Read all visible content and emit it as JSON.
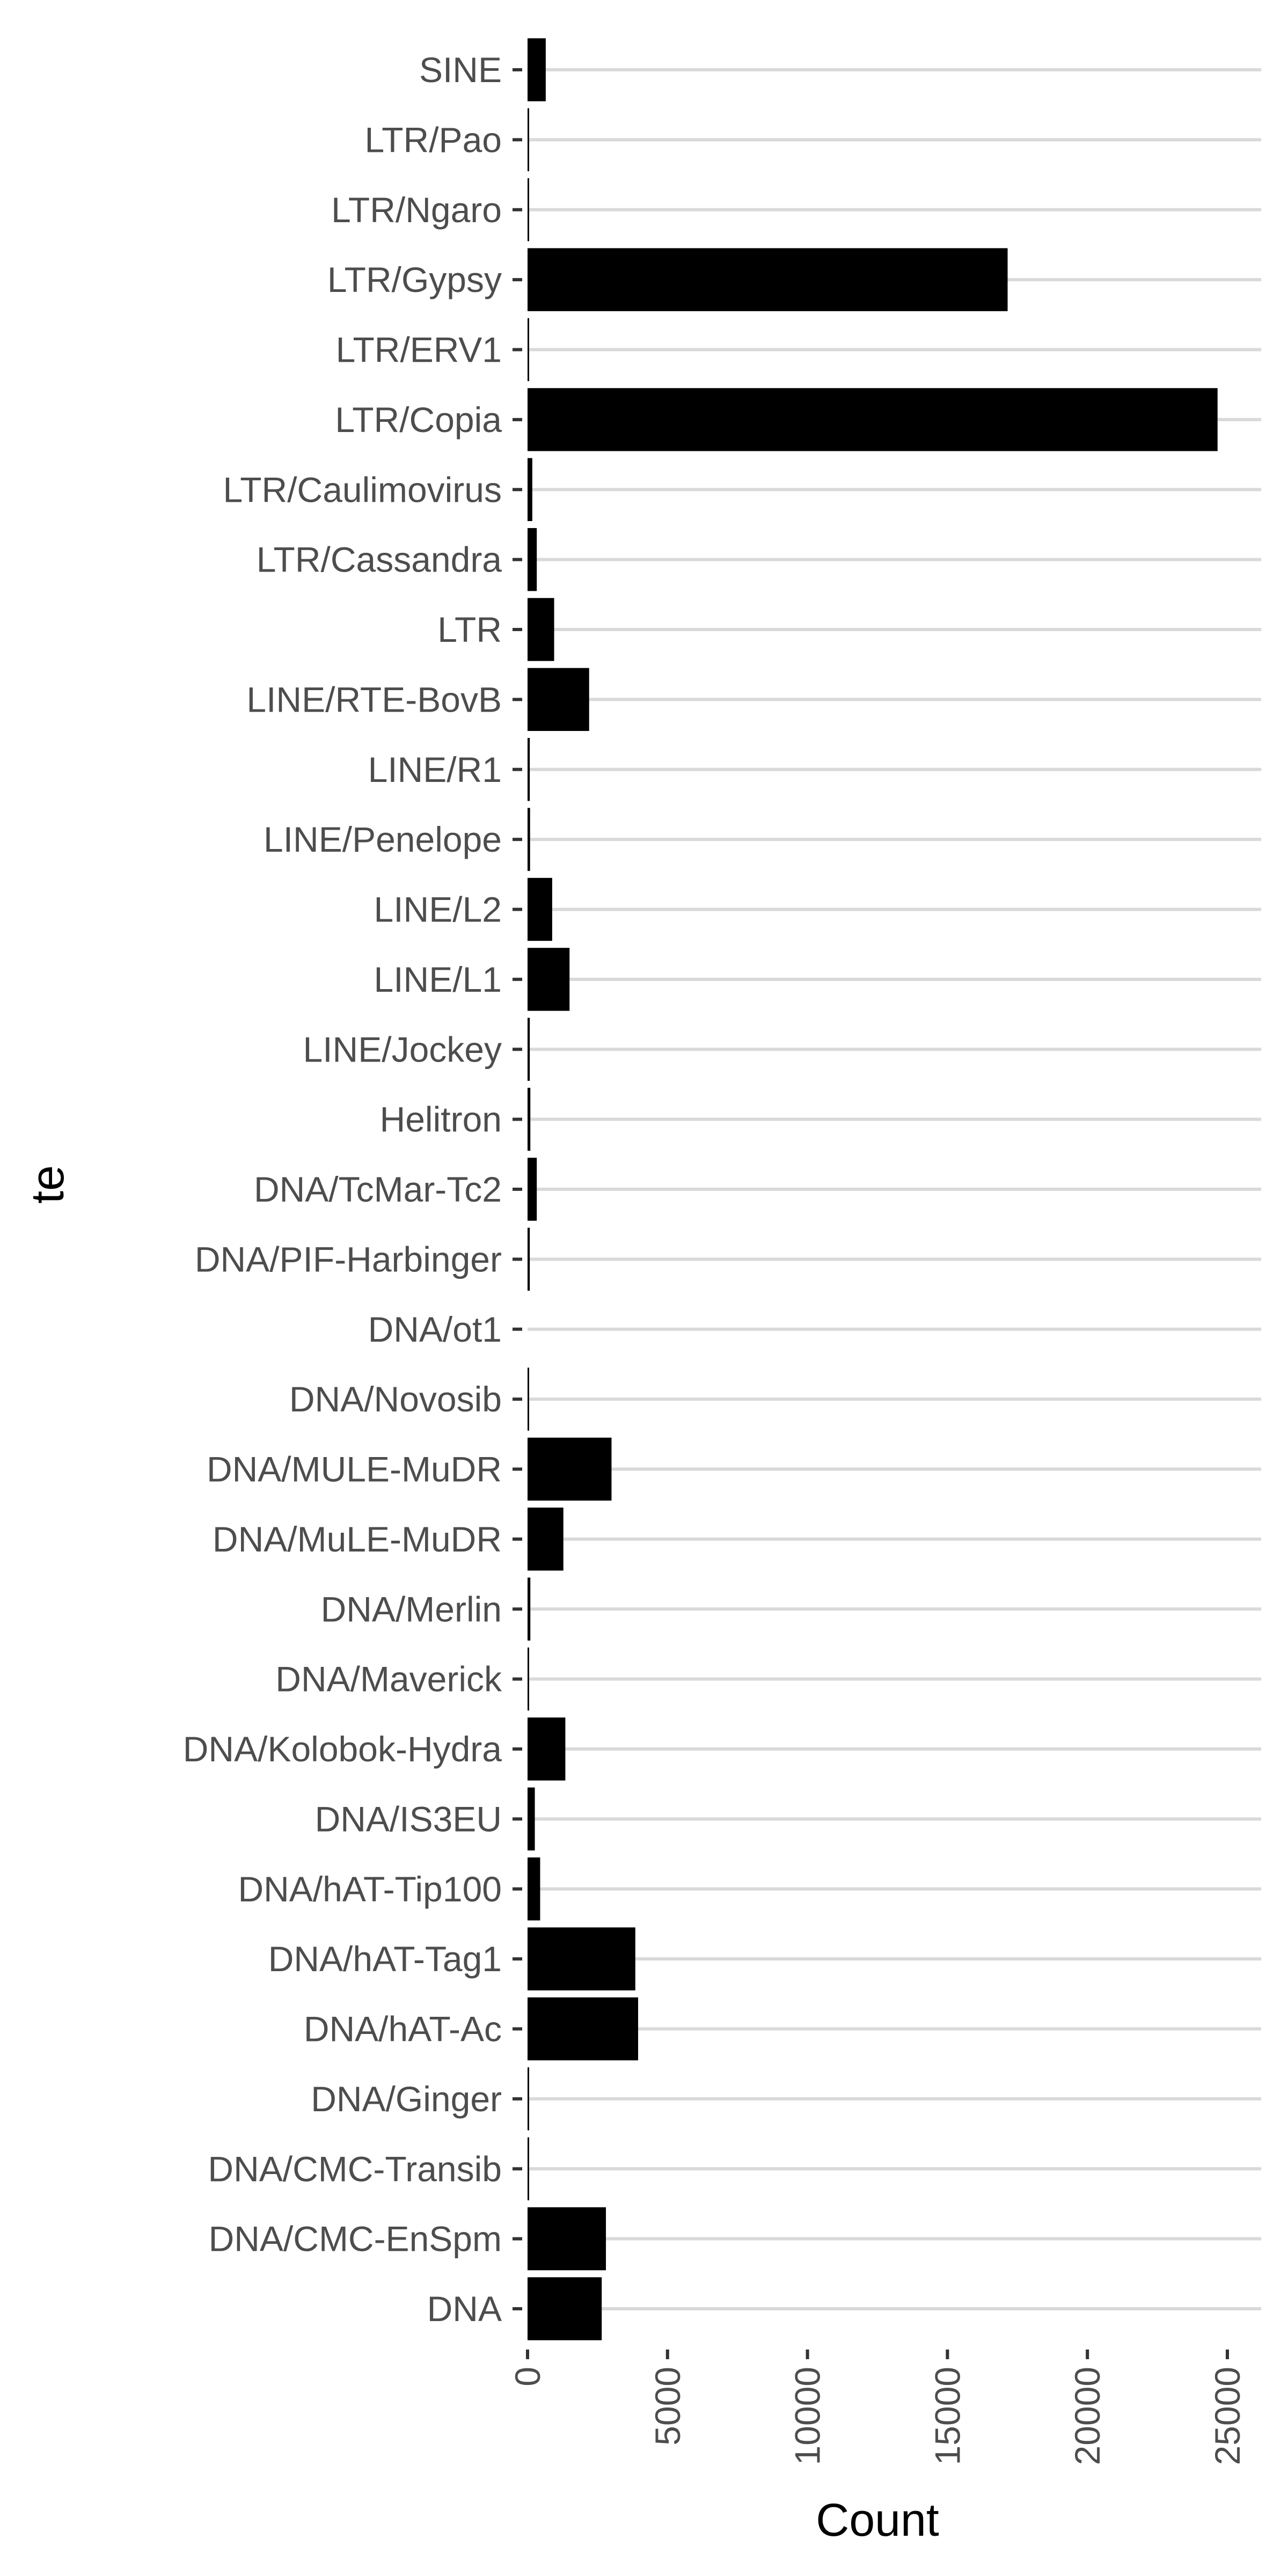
{
  "chart_data": {
    "type": "bar",
    "orientation": "horizontal",
    "title": "",
    "xlabel": "Count",
    "ylabel": "te",
    "xlim": [
      0,
      25000
    ],
    "x_ticks": [
      0,
      5000,
      10000,
      15000,
      20000,
      25000
    ],
    "x_tick_labels": [
      "0",
      "5000",
      "10000",
      "15000",
      "20000",
      "25000"
    ],
    "grid": true,
    "legend": "none",
    "bar_color": "#000000",
    "categories": [
      "SINE",
      "LTR/Pao",
      "LTR/Ngaro",
      "LTR/Gypsy",
      "LTR/ERV1",
      "LTR/Copia",
      "LTR/Caulimovirus",
      "LTR/Cassandra",
      "LTR",
      "LINE/RTE-BovB",
      "LINE/R1",
      "LINE/Penelope",
      "LINE/L2",
      "LINE/L1",
      "LINE/Jockey",
      "Helitron",
      "DNA/TcMar-Tc2",
      "DNA/PIF-Harbinger",
      "DNA/ot1",
      "DNA/Novosib",
      "DNA/MULE-MuDR",
      "DNA/MuLE-MuDR",
      "DNA/Merlin",
      "DNA/Maverick",
      "DNA/Kolobok-Hydra",
      "DNA/IS3EU",
      "DNA/hAT-Tip100",
      "DNA/hAT-Tag1",
      "DNA/hAT-Ac",
      "DNA/Ginger",
      "DNA/CMC-Transib",
      "DNA/CMC-EnSpm",
      "DNA"
    ],
    "values": [
      650,
      30,
      20,
      17150,
      15,
      24650,
      170,
      330,
      950,
      2200,
      80,
      90,
      880,
      1500,
      80,
      100,
      330,
      80,
      0,
      20,
      3000,
      1280,
      100,
      30,
      1350,
      260,
      450,
      3850,
      3950,
      20,
      25,
      2800,
      2650
    ]
  }
}
